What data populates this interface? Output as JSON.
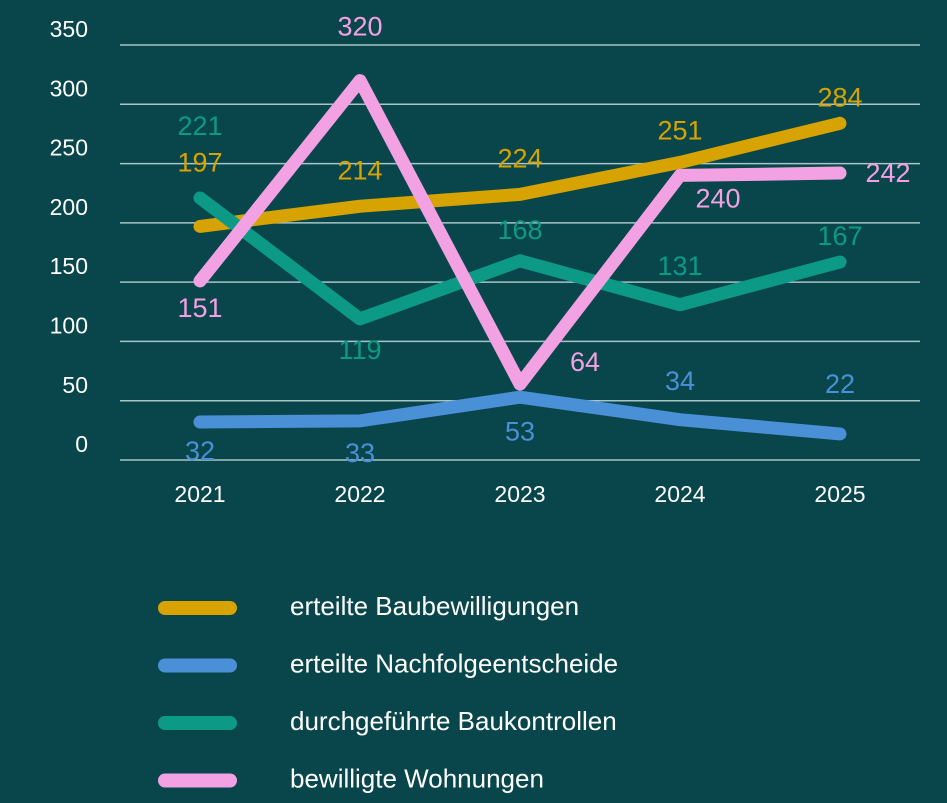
{
  "chart_data": {
    "type": "line",
    "categories": [
      "2021",
      "2022",
      "2023",
      "2024",
      "2025"
    ],
    "series": [
      {
        "name": "erteilte Baubewilligungen",
        "color": "#d6a300",
        "values": [
          197,
          214,
          224,
          251,
          284
        ]
      },
      {
        "name": "erteilte Nachfolgeentscheide",
        "color": "#4a90d6",
        "values": [
          32,
          33,
          53,
          34,
          22
        ]
      },
      {
        "name": "durchgeführte Baukontrollen",
        "color": "#0c9a86",
        "values": [
          221,
          119,
          168,
          131,
          167
        ]
      },
      {
        "name": "bewilligte Wohnungen",
        "color": "#f2a2e2",
        "values": [
          151,
          320,
          64,
          240,
          242
        ]
      }
    ],
    "ylim": [
      0,
      350
    ],
    "yticks": [
      0,
      50,
      100,
      150,
      200,
      250,
      300,
      350
    ],
    "grid": true
  }
}
